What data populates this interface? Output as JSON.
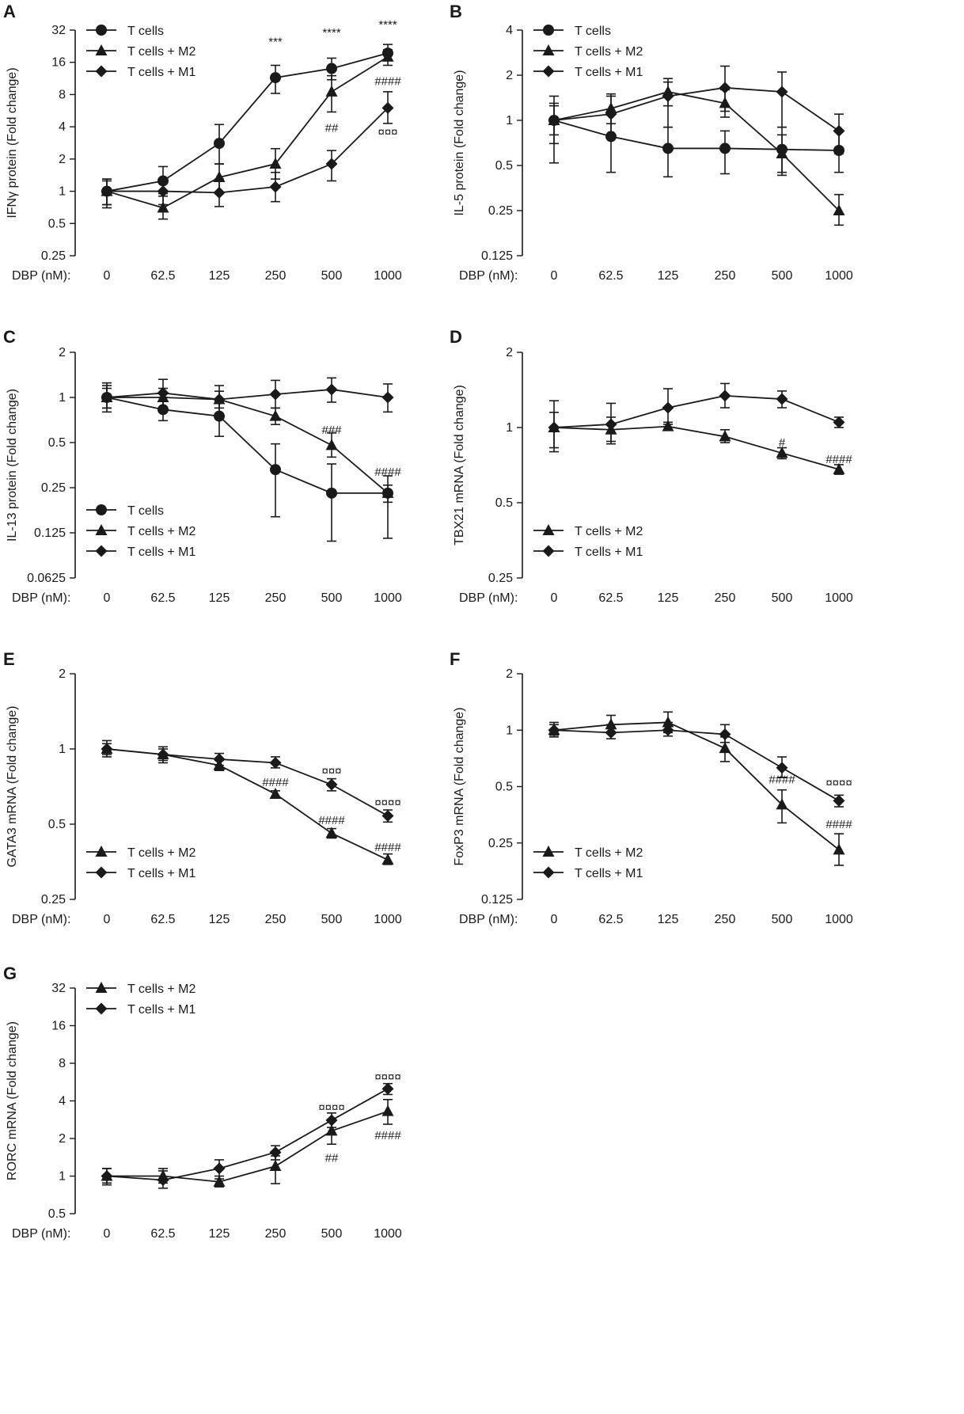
{
  "figure": {
    "x_prefix": "DBP (nM):",
    "x_categories": [
      "0",
      "62.5",
      "125",
      "250",
      "500",
      "1000"
    ]
  },
  "colors": {
    "ink": "#1a1a1a",
    "background": "#ffffff"
  },
  "chart_data": [
    {
      "panel": "A",
      "type": "line",
      "yscale": "log2",
      "legend_position": "top-left",
      "ylabel": "IFNγ protein (Fold change)",
      "ylim": [
        0.25,
        32
      ],
      "yticks": [
        "0.25",
        "0.5",
        "1",
        "2",
        "4",
        "8",
        "16",
        "32"
      ],
      "series": [
        {
          "name": "T cells",
          "marker": "circle",
          "values": [
            1,
            1.25,
            2.8,
            11.5,
            14,
            19.5
          ],
          "err_up": [
            1.3,
            1.7,
            4.2,
            15,
            17.5,
            23.5
          ],
          "err_down": [
            0.75,
            0.95,
            1.8,
            8.2,
            11,
            16.5
          ]
        },
        {
          "name": "T cells + M2",
          "marker": "triangle",
          "values": [
            1,
            0.7,
            1.35,
            1.8,
            8.5,
            18
          ],
          "err_up": [
            1.25,
            0.9,
            1.8,
            2.5,
            12,
            21
          ],
          "err_down": [
            0.75,
            0.55,
            0.95,
            1.3,
            5.5,
            15
          ]
        },
        {
          "name": "T cells + M1",
          "marker": "diamond",
          "values": [
            1,
            1,
            0.97,
            1.1,
            1.8,
            6
          ],
          "err_up": [
            1.3,
            1.25,
            1.3,
            1.5,
            2.4,
            8.5
          ],
          "err_down": [
            0.7,
            0.75,
            0.72,
            0.8,
            1.25,
            4.3
          ]
        }
      ],
      "annotations": [
        {
          "text": "***",
          "category": "250",
          "value": 23,
          "pos": "above"
        },
        {
          "text": "****",
          "category": "500",
          "value": 28,
          "pos": "above"
        },
        {
          "text": "****",
          "category": "1000",
          "value": 33,
          "pos": "above"
        },
        {
          "text": "##",
          "category": "500",
          "value": 3.6,
          "pos": "above"
        },
        {
          "text": "####",
          "category": "1000",
          "value": 9.8,
          "pos": "above"
        },
        {
          "text": "¤¤¤",
          "category": "1000",
          "value": 3.3,
          "pos": "above"
        }
      ]
    },
    {
      "panel": "B",
      "type": "line",
      "yscale": "log2",
      "legend_position": "top-left",
      "ylabel": "IL-5 protein (Fold change)",
      "ylim": [
        0.125,
        4
      ],
      "yticks": [
        "0.125",
        "0.25",
        "0.5",
        "1",
        "2",
        "4"
      ],
      "series": [
        {
          "name": "T cells",
          "marker": "circle",
          "values": [
            1,
            0.78,
            0.65,
            0.65,
            0.64,
            0.63
          ],
          "err_up": [
            1.45,
            1.1,
            0.9,
            0.85,
            0.9,
            0.85
          ],
          "err_down": [
            0.52,
            0.45,
            0.42,
            0.44,
            0.43,
            0.45
          ]
        },
        {
          "name": "T cells + M2",
          "marker": "triangle",
          "values": [
            1,
            1.2,
            1.55,
            1.3,
            0.6,
            0.25
          ],
          "err_up": [
            1.25,
            1.5,
            1.9,
            1.6,
            0.8,
            0.32
          ],
          "err_down": [
            0.8,
            0.95,
            1.25,
            1.05,
            0.45,
            0.2
          ]
        },
        {
          "name": "T cells + M1",
          "marker": "diamond",
          "values": [
            1,
            1.1,
            1.45,
            1.65,
            1.55,
            0.85
          ],
          "err_up": [
            1.3,
            1.45,
            1.8,
            2.3,
            2.1,
            1.1
          ],
          "err_down": [
            0.7,
            0.8,
            0.9,
            1.15,
            0.9,
            0.6
          ]
        }
      ],
      "annotations": []
    },
    {
      "panel": "C",
      "type": "line",
      "yscale": "log2",
      "legend_position": "bottom-left",
      "ylabel": "IL-13 protein (Fold change)",
      "ylim": [
        0.0625,
        2
      ],
      "yticks": [
        "0.0625",
        "0.125",
        "0.25",
        "0.5",
        "1",
        "2"
      ],
      "series": [
        {
          "name": "T cells",
          "marker": "circle",
          "values": [
            1,
            0.83,
            0.75,
            0.33,
            0.23,
            0.23
          ],
          "err_up": [
            1.2,
            1.0,
            0.95,
            0.49,
            0.36,
            0.3
          ],
          "err_down": [
            0.85,
            0.7,
            0.55,
            0.16,
            0.11,
            0.115
          ]
        },
        {
          "name": "T cells + M2",
          "marker": "triangle",
          "values": [
            1,
            1.0,
            0.97,
            0.75,
            0.48,
            0.23
          ],
          "err_up": [
            1.15,
            1.15,
            1.1,
            0.85,
            0.58,
            0.26
          ],
          "err_down": [
            0.85,
            0.85,
            0.85,
            0.66,
            0.4,
            0.2
          ]
        },
        {
          "name": "T cells + M1",
          "marker": "diamond",
          "values": [
            1,
            1.07,
            0.97,
            1.05,
            1.13,
            1
          ],
          "err_up": [
            1.25,
            1.32,
            1.2,
            1.3,
            1.35,
            1.23
          ],
          "err_down": [
            0.8,
            0.83,
            0.78,
            0.85,
            0.93,
            0.8
          ]
        }
      ],
      "annotations": [
        {
          "text": "###",
          "category": "500",
          "value": 0.57,
          "pos": "above"
        },
        {
          "text": "####",
          "category": "1000",
          "value": 0.3,
          "pos": "above"
        }
      ]
    },
    {
      "panel": "D",
      "type": "line",
      "yscale": "log2",
      "legend_position": "bottom-left",
      "ylabel": "TBX21 mRNA (Fold change)",
      "ylim": [
        0.25,
        2
      ],
      "yticks": [
        "0.25",
        "0.5",
        "1",
        "2"
      ],
      "series": [
        {
          "name": "T cells + M2",
          "marker": "triangle",
          "values": [
            1,
            0.98,
            1.01,
            0.92,
            0.79,
            0.68
          ],
          "err_up": [
            1.15,
            1.1,
            1.05,
            0.98,
            0.83,
            0.71
          ],
          "err_down": [
            0.83,
            0.86,
            0.98,
            0.87,
            0.75,
            0.65
          ]
        },
        {
          "name": "T cells + M1",
          "marker": "diamond",
          "values": [
            1,
            1.03,
            1.2,
            1.34,
            1.3,
            1.05
          ],
          "err_up": [
            1.28,
            1.25,
            1.43,
            1.5,
            1.4,
            1.1
          ],
          "err_down": [
            0.8,
            0.88,
            1.03,
            1.2,
            1.2,
            1.0
          ]
        }
      ],
      "annotations": [
        {
          "text": "#",
          "category": "500",
          "value": 0.84,
          "pos": "above"
        },
        {
          "text": "####",
          "category": "1000",
          "value": 0.72,
          "pos": "above"
        }
      ]
    },
    {
      "panel": "E",
      "type": "line",
      "yscale": "log2",
      "legend_position": "bottom-left",
      "ylabel": "GATA3 mRNA (Fold change)",
      "ylim": [
        0.25,
        2
      ],
      "yticks": [
        "0.25",
        "0.5",
        "1",
        "2"
      ],
      "series": [
        {
          "name": "T cells + M2",
          "marker": "triangle",
          "values": [
            1,
            0.95,
            0.86,
            0.66,
            0.46,
            0.36
          ],
          "err_up": [
            1.05,
            1.0,
            0.9,
            0.68,
            0.48,
            0.38
          ],
          "err_down": [
            0.95,
            0.9,
            0.82,
            0.64,
            0.44,
            0.345
          ]
        },
        {
          "name": "T cells + M1",
          "marker": "diamond",
          "values": [
            1,
            0.95,
            0.91,
            0.88,
            0.72,
            0.54
          ],
          "err_up": [
            1.08,
            1.02,
            0.96,
            0.93,
            0.76,
            0.57
          ],
          "err_down": [
            0.93,
            0.88,
            0.86,
            0.84,
            0.68,
            0.51
          ]
        }
      ],
      "annotations": [
        {
          "text": "¤¤¤",
          "category": "500",
          "value": 0.79,
          "pos": "above"
        },
        {
          "text": "¤¤¤¤",
          "category": "1000",
          "value": 0.59,
          "pos": "above"
        },
        {
          "text": "####",
          "category": "250",
          "value": 0.71,
          "pos": "above"
        },
        {
          "text": "####",
          "category": "500",
          "value": 0.5,
          "pos": "above"
        },
        {
          "text": "####",
          "category": "1000",
          "value": 0.39,
          "pos": "above"
        }
      ]
    },
    {
      "panel": "F",
      "type": "line",
      "yscale": "log2",
      "legend_position": "bottom-left",
      "ylabel": "FoxP3 mRNA (Fold change)",
      "ylim": [
        0.125,
        2
      ],
      "yticks": [
        "0.125",
        "0.25",
        "0.5",
        "1",
        "2"
      ],
      "series": [
        {
          "name": "T cells + M2",
          "marker": "triangle",
          "values": [
            1,
            1.07,
            1.1,
            0.8,
            0.4,
            0.23
          ],
          "err_up": [
            1.1,
            1.2,
            1.25,
            0.92,
            0.48,
            0.28
          ],
          "err_down": [
            0.92,
            0.96,
            0.97,
            0.68,
            0.32,
            0.19
          ]
        },
        {
          "name": "T cells + M1",
          "marker": "diamond",
          "values": [
            1,
            0.97,
            1.0,
            0.95,
            0.63,
            0.42
          ],
          "err_up": [
            1.07,
            1.07,
            1.1,
            1.07,
            0.72,
            0.45
          ],
          "err_down": [
            0.94,
            0.9,
            0.93,
            0.86,
            0.56,
            0.39
          ]
        }
      ],
      "annotations": [
        {
          "text": "####",
          "category": "500",
          "value": 0.52,
          "pos": "above"
        },
        {
          "text": "####",
          "category": "1000",
          "value": 0.3,
          "pos": "above"
        },
        {
          "text": "¤¤¤¤",
          "category": "1000",
          "value": 0.5,
          "pos": "above"
        }
      ]
    },
    {
      "panel": "G",
      "type": "line",
      "yscale": "log2",
      "legend_position": "top-left",
      "ylabel": "RORC mRNA (Fold change)",
      "ylim": [
        0.5,
        32
      ],
      "yticks": [
        "0.5",
        "1",
        "2",
        "4",
        "8",
        "16",
        "32"
      ],
      "series": [
        {
          "name": "T cells + M2",
          "marker": "triangle",
          "values": [
            1,
            1.0,
            0.9,
            1.2,
            2.3,
            3.3
          ],
          "err_up": [
            1.15,
            1.15,
            1.0,
            1.45,
            2.85,
            4.1
          ],
          "err_down": [
            0.85,
            0.88,
            0.82,
            0.87,
            1.8,
            2.6
          ]
        },
        {
          "name": "T cells + M1",
          "marker": "diamond",
          "values": [
            1,
            0.93,
            1.15,
            1.55,
            2.8,
            5
          ],
          "err_up": [
            1.15,
            1.1,
            1.35,
            1.75,
            3.2,
            5.5
          ],
          "err_down": [
            0.88,
            0.8,
            0.95,
            1.35,
            2.45,
            4.5
          ]
        }
      ],
      "annotations": [
        {
          "text": "¤¤¤¤",
          "category": "500",
          "value": 3.3,
          "pos": "above"
        },
        {
          "text": "¤¤¤¤",
          "category": "1000",
          "value": 5.8,
          "pos": "above"
        },
        {
          "text": "##",
          "category": "500",
          "value": 1.55,
          "pos": "below"
        },
        {
          "text": "####",
          "category": "1000",
          "value": 2.35,
          "pos": "below"
        }
      ]
    }
  ]
}
